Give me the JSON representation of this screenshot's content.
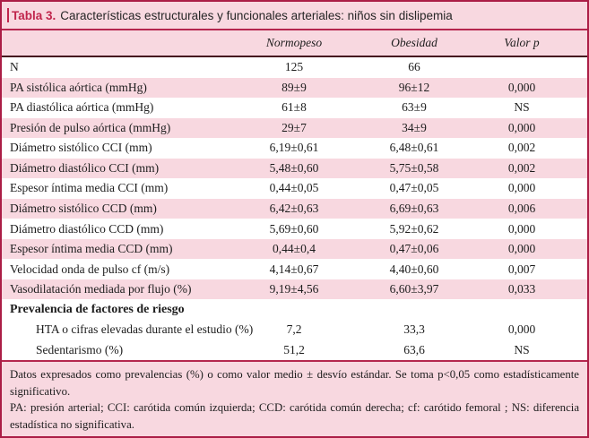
{
  "table": {
    "title": {
      "label": "Tabla 3.",
      "text": "Características estructurales y funcionales arteriales: niños sin dislipemia"
    },
    "columns": [
      "Normopeso",
      "Obesidad",
      "Valor p"
    ],
    "rows": [
      {
        "label": "N",
        "normopeso": "125",
        "obesidad": "66",
        "p": ""
      },
      {
        "label": "PA sistólica aórtica (mmHg)",
        "normopeso": "89±9",
        "obesidad": "96±12",
        "p": "0,000"
      },
      {
        "label": "PA diastólica aórtica (mmHg)",
        "normopeso": "61±8",
        "obesidad": "63±9",
        "p": "NS"
      },
      {
        "label": "Presión de pulso aórtica (mmHg)",
        "normopeso": "29±7",
        "obesidad": "34±9",
        "p": "0,000"
      },
      {
        "label": "Diámetro sistólico CCI (mm)",
        "normopeso": "6,19±0,61",
        "obesidad": "6,48±0,61",
        "p": "0,002"
      },
      {
        "label": "Diámetro diastólico CCI (mm)",
        "normopeso": "5,48±0,60",
        "obesidad": "5,75±0,58",
        "p": "0,002"
      },
      {
        "label": "Espesor íntima media CCI (mm)",
        "normopeso": "0,44±0,05",
        "obesidad": "0,47±0,05",
        "p": "0,000"
      },
      {
        "label": "Diámetro sistólico CCD (mm)",
        "normopeso": "6,42±0,63",
        "obesidad": "6,69±0,63",
        "p": "0,006"
      },
      {
        "label": "Diámetro diastólico CCD (mm)",
        "normopeso": "5,69±0,60",
        "obesidad": "5,92±0,62",
        "p": "0,000"
      },
      {
        "label": "Espesor íntima media CCD (mm)",
        "normopeso": "0,44±0,4",
        "obesidad": "0,47±0,06",
        "p": "0,000"
      },
      {
        "label": "Velocidad onda de pulso cf (m/s)",
        "normopeso": "4,14±0,67",
        "obesidad": "4,40±0,60",
        "p": "0,007"
      },
      {
        "label": "Vasodilatación mediada por flujo (%)",
        "normopeso": "9,19±4,56",
        "obesidad": "6,60±3,97",
        "p": "0,033"
      },
      {
        "label": "Prevalencia de factores de riesgo",
        "normopeso": "",
        "obesidad": "",
        "p": "",
        "section": true
      },
      {
        "label": "HTA o cifras elevadas durante el estudio (%)",
        "normopeso": "7,2",
        "obesidad": "33,3",
        "p": "0,000",
        "indent": true
      },
      {
        "label": "Sedentarismo (%)",
        "normopeso": "51,2",
        "obesidad": "63,6",
        "p": "NS",
        "indent": true
      }
    ],
    "footnotes": [
      "Datos expresados como prevalencias (%) o como valor medio ± desvío estándar. Se toma p<0,05 como estadísticamente significativo.",
      "PA: presión arterial; CCI: carótida común izquierda; CCD: carótida común derecha; cf: carótido femoral ; NS: diferencia estadística no significativa."
    ],
    "colors": {
      "accent_border": "#ab1d46",
      "title_red": "#c0254c",
      "row_pink": "#f8d8e0",
      "header_rule_dark": "#46141f"
    }
  }
}
